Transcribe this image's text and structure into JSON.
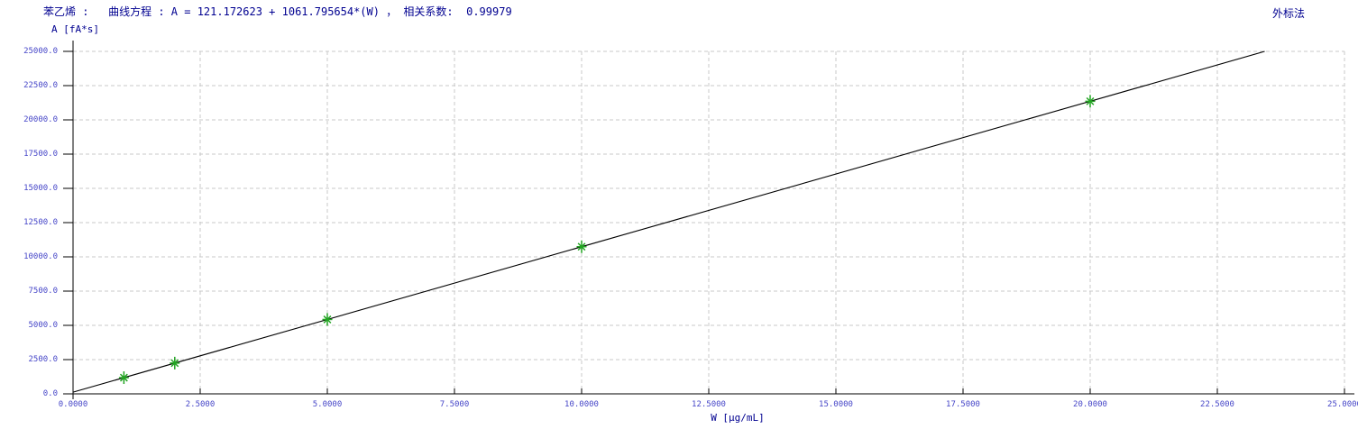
{
  "header": {
    "title": "苯乙烯 :   曲线方程 : A = 121.172623 + 1061.795654*(W) ， 相关系数:  0.99979",
    "compound": "苯乙烯",
    "method": "外标法"
  },
  "chart_data": {
    "type": "scatter",
    "title": "苯乙烯 曲线方程 : A = 121.172623 + 1061.795654*(W) , 相关系数: 0.99979",
    "equation": "A = 121.172623 + 1061.795654*(W)",
    "fit": {
      "intercept": 121.172623,
      "slope": 1061.795654,
      "r": 0.99979
    },
    "xlabel": "W [μg/mL]",
    "ylabel": "A [fA*s]",
    "xlim": [
      0,
      25
    ],
    "ylim": [
      0,
      25000
    ],
    "grid": true,
    "legend_position": "none",
    "x_ticks": {
      "values": [
        0,
        2.5,
        5,
        7.5,
        10,
        12.5,
        15,
        17.5,
        20,
        22.5,
        25
      ],
      "labels": [
        "0.0000",
        "2.5000",
        "5.0000",
        "7.5000",
        "10.0000",
        "12.5000",
        "15.0000",
        "17.5000",
        "20.0000",
        "22.5000",
        "25.0000"
      ]
    },
    "y_ticks": {
      "values": [
        0,
        2500,
        5000,
        7500,
        10000,
        12500,
        15000,
        17500,
        20000,
        22500,
        25000
      ],
      "labels": [
        "0.0",
        "2500.0",
        "5000.0",
        "7500.0",
        "10000.0",
        "12500.0",
        "15000.0",
        "17500.0",
        "20000.0",
        "22500.0",
        "25000.0"
      ]
    },
    "points": [
      {
        "w": 1.0,
        "a": 1183.0
      },
      {
        "w": 2.0,
        "a": 2244.8
      },
      {
        "w": 5.0,
        "a": 5430.2
      },
      {
        "w": 10.0,
        "a": 10739.1
      },
      {
        "w": 20.0,
        "a": 21357.1
      }
    ],
    "colors": {
      "marker": "#22a422",
      "fit_line": "#000000",
      "axis": "#000000",
      "grid": "#c9c9c9",
      "label_text": "#000090",
      "tick_text": "#4646c8"
    }
  }
}
